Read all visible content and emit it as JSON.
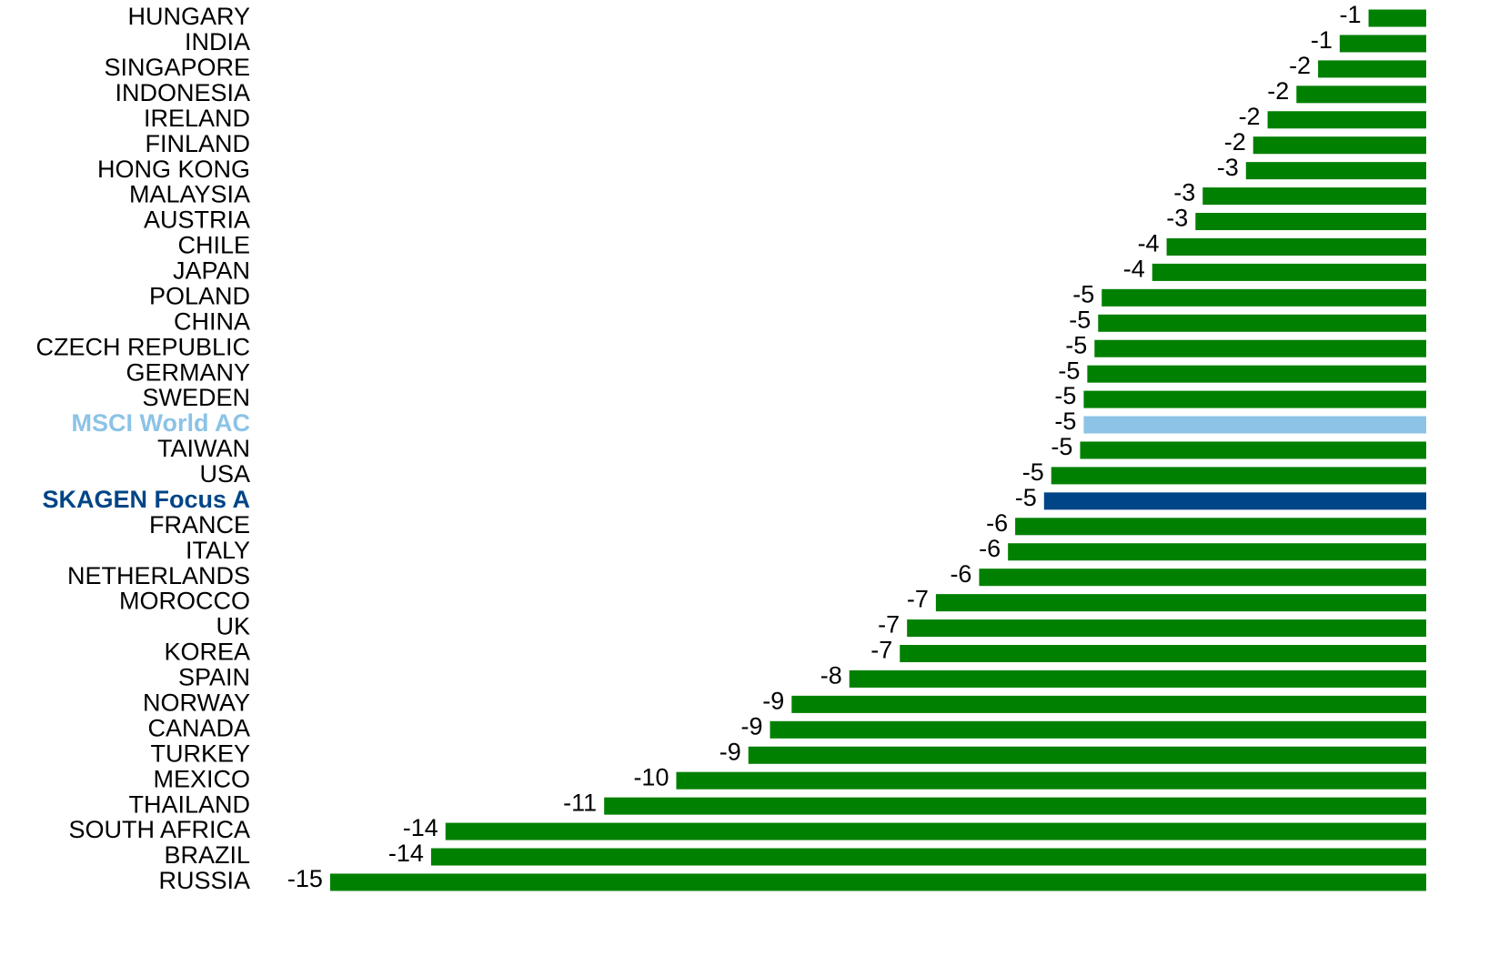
{
  "chart_data": {
    "type": "barh",
    "categories": [
      "HUNGARY",
      "INDIA",
      "SINGAPORE",
      "INDONESIA",
      "IRELAND",
      "FINLAND",
      "HONG KONG",
      "MALAYSIA",
      "AUSTRIA",
      "CHILE",
      "JAPAN",
      "POLAND",
      "CHINA",
      "CZECH REPUBLIC",
      "GERMANY",
      "SWEDEN",
      "MSCI World AC",
      "TAIWAN",
      "USA",
      "SKAGEN Focus A",
      "FRANCE",
      "ITALY",
      "NETHERLANDS",
      "MOROCCO",
      "UK",
      "KOREA",
      "SPAIN",
      "NORWAY",
      "CANADA",
      "TURKEY",
      "MEXICO",
      "THAILAND",
      "SOUTH AFRICA",
      "BRAZIL",
      "RUSSIA"
    ],
    "values": [
      -0.8,
      -1.2,
      -1.5,
      -1.8,
      -2.2,
      -2.4,
      -2.5,
      -3.1,
      -3.2,
      -3.6,
      -3.8,
      -4.5,
      -4.55,
      -4.6,
      -4.7,
      -4.75,
      -4.75,
      -4.8,
      -5.2,
      -5.3,
      -5.7,
      -5.8,
      -6.2,
      -6.8,
      -7.2,
      -7.3,
      -8.0,
      -8.8,
      -9.1,
      -9.4,
      -10.4,
      -11.4,
      -13.6,
      -13.8,
      -15.2
    ],
    "value_labels": [
      "-1",
      "-1",
      "-2",
      "-2",
      "-2",
      "-2",
      "-3",
      "-3",
      "-3",
      "-4",
      "-4",
      "-5",
      "-5",
      "-5",
      "-5",
      "-5",
      "-5",
      "-5",
      "-5",
      "-5",
      "-6",
      "-6",
      "-6",
      "-7",
      "-7",
      "-7",
      "-8",
      "-9",
      "-9",
      "-9",
      "-10",
      "-11",
      "-14",
      "-14",
      "-15"
    ],
    "colors": [
      "#008000",
      "#008000",
      "#008000",
      "#008000",
      "#008000",
      "#008000",
      "#008000",
      "#008000",
      "#008000",
      "#008000",
      "#008000",
      "#008000",
      "#008000",
      "#008000",
      "#008000",
      "#008000",
      "#8cc3e6",
      "#008000",
      "#008000",
      "#004587",
      "#008000",
      "#008000",
      "#008000",
      "#008000",
      "#008000",
      "#008000",
      "#008000",
      "#008000",
      "#008000",
      "#008000",
      "#008000",
      "#008000",
      "#008000",
      "#008000",
      "#008000"
    ],
    "highlight_categories": [
      "MSCI World AC",
      "SKAGEN Focus A"
    ],
    "xlim": [
      -15.3,
      0
    ]
  }
}
